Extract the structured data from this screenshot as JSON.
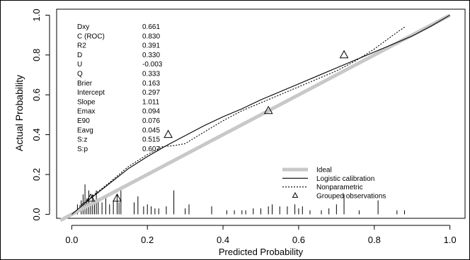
{
  "chart_data": {
    "type": "line",
    "xlabel": "Predicted Probability",
    "ylabel": "Actual Probability",
    "xlim": [
      -0.04,
      1.04
    ],
    "ylim": [
      -0.02,
      1.03
    ],
    "x_ticks": [
      0.0,
      0.2,
      0.4,
      0.6,
      0.8,
      1.0
    ],
    "x_tick_labels": [
      "0.0",
      "0.2",
      "0.4",
      "0.6",
      "0.8",
      "1.0"
    ],
    "y_ticks": [
      0.0,
      0.2,
      0.4,
      0.6,
      0.8,
      1.0
    ],
    "y_tick_labels": [
      "0.0",
      "0.2",
      "0.4",
      "0.6",
      "0.8",
      "1.0"
    ],
    "grid": false,
    "legend_position": "bottom-right",
    "stats": [
      {
        "label": "Dxy",
        "value": "0.661"
      },
      {
        "label": "C (ROC)",
        "value": "0.830"
      },
      {
        "label": "R2",
        "value": "0.391"
      },
      {
        "label": "D",
        "value": "0.330"
      },
      {
        "label": "U",
        "value": "-0.003"
      },
      {
        "label": "Q",
        "value": "0.333"
      },
      {
        "label": "Brier",
        "value": "0.163"
      },
      {
        "label": "Intercept",
        "value": "0.297"
      },
      {
        "label": "Slope",
        "value": "1.011"
      },
      {
        "label": "Emax",
        "value": "0.094"
      },
      {
        "label": "E90",
        "value": "0.076"
      },
      {
        "label": "Eavg",
        "value": "0.045"
      },
      {
        "label": "S:z",
        "value": "0.515"
      },
      {
        "label": "S:p",
        "value": "0.607"
      }
    ],
    "series": [
      {
        "name": "Ideal",
        "style": "thick-gray",
        "color": "#c8c8c8",
        "x": [
          -0.03,
          1.0
        ],
        "y": [
          -0.03,
          1.0
        ]
      },
      {
        "name": "Logistic calibration",
        "style": "solid",
        "color": "#000000",
        "x": [
          0.0,
          0.05,
          0.1,
          0.15,
          0.2,
          0.25,
          0.3,
          0.35,
          0.4,
          0.45,
          0.5,
          0.55,
          0.6,
          0.65,
          0.7,
          0.75,
          0.8,
          0.85,
          0.9,
          0.95,
          1.0
        ],
        "y": [
          0.0,
          0.08,
          0.155,
          0.23,
          0.29,
          0.345,
          0.395,
          0.445,
          0.49,
          0.53,
          0.575,
          0.615,
          0.655,
          0.695,
          0.735,
          0.775,
          0.815,
          0.855,
          0.895,
          0.945,
          1.0
        ]
      },
      {
        "name": "Nonparametric",
        "style": "dotted",
        "color": "#000000",
        "x": [
          0.02,
          0.06,
          0.1,
          0.15,
          0.2,
          0.24,
          0.27,
          0.3,
          0.33,
          0.4,
          0.45,
          0.5,
          0.55,
          0.6,
          0.65,
          0.7,
          0.75,
          0.8,
          0.85,
          0.88
        ],
        "y": [
          0.04,
          0.1,
          0.16,
          0.24,
          0.3,
          0.34,
          0.345,
          0.355,
          0.39,
          0.47,
          0.52,
          0.56,
          0.6,
          0.64,
          0.68,
          0.72,
          0.77,
          0.83,
          0.9,
          0.94
        ]
      },
      {
        "name": "Grouped observations",
        "style": "triangle",
        "color": "#000000",
        "x": [
          0.05,
          0.12,
          0.255,
          0.52,
          0.72
        ],
        "y": [
          0.08,
          0.08,
          0.4,
          0.52,
          0.8
        ]
      }
    ],
    "rug_x": [
      0.015,
      0.025,
      0.03,
      0.035,
      0.04,
      0.045,
      0.05,
      0.055,
      0.06,
      0.065,
      0.07,
      0.08,
      0.09,
      0.1,
      0.11,
      0.12,
      0.125,
      0.13,
      0.165,
      0.175,
      0.19,
      0.2,
      0.21,
      0.22,
      0.23,
      0.25,
      0.27,
      0.3,
      0.31,
      0.37,
      0.41,
      0.43,
      0.45,
      0.46,
      0.48,
      0.5,
      0.52,
      0.53,
      0.55,
      0.57,
      0.59,
      0.6,
      0.61,
      0.63,
      0.66,
      0.68,
      0.7,
      0.72,
      0.76,
      0.81,
      0.86,
      0.88
    ],
    "rug_h": [
      0.05,
      0.07,
      0.1,
      0.15,
      0.08,
      0.12,
      0.06,
      0.1,
      0.05,
      0.12,
      0.08,
      0.06,
      0.09,
      0.05,
      0.07,
      0.1,
      0.06,
      0.12,
      0.06,
      0.09,
      0.04,
      0.05,
      0.04,
      0.03,
      0.03,
      0.04,
      0.12,
      0.03,
      0.05,
      0.04,
      0.02,
      0.02,
      0.02,
      0.02,
      0.03,
      0.03,
      0.04,
      0.05,
      0.04,
      0.04,
      0.05,
      0.03,
      0.04,
      0.02,
      0.02,
      0.03,
      0.05,
      0.1,
      0.02,
      0.07,
      0.02,
      0.02
    ]
  }
}
